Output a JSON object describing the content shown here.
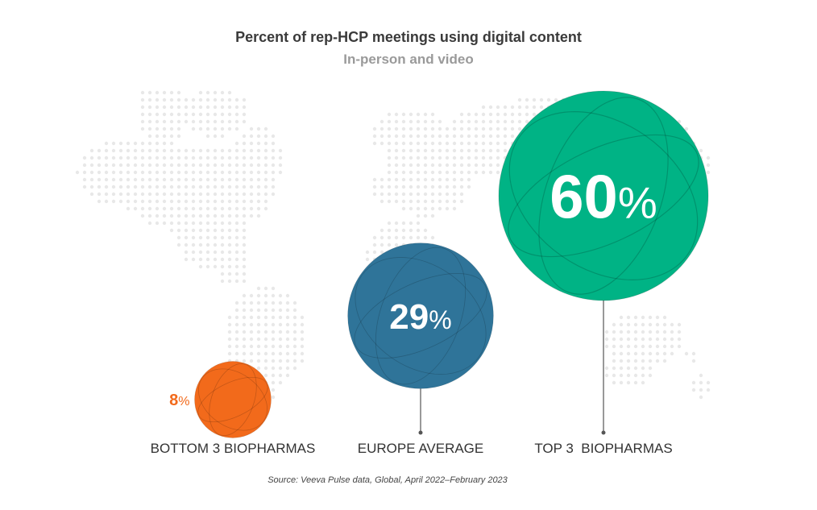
{
  "chart_data": {
    "type": "bubble",
    "title": "Percent of rep-HCP meetings using digital content",
    "subtitle": "In-person and video",
    "categories": [
      "BOTTOM 3 BIOPHARMAS",
      "EUROPE AVERAGE",
      "TOP 3  BIOPHARMAS"
    ],
    "values": [
      8,
      29,
      60
    ],
    "value_labels": [
      "8",
      "29",
      "60"
    ],
    "unit": "%",
    "colors": [
      "#f26a1b",
      "#2f7499",
      "#00b385"
    ],
    "source": "Source: Veeva Pulse data, Global, April 2022–February 2023"
  }
}
